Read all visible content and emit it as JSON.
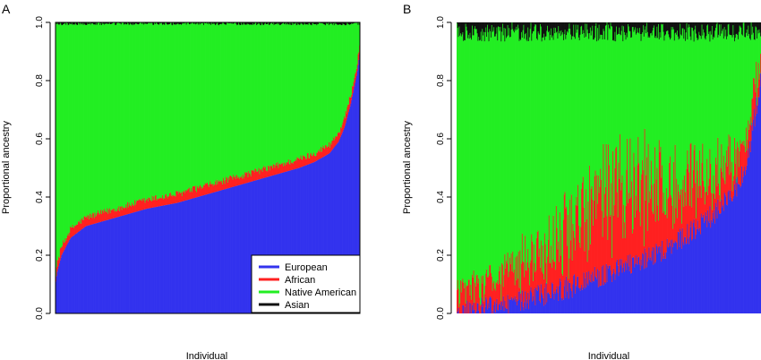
{
  "colors": {
    "European": "#3333ee",
    "African": "#ff2020",
    "Native American": "#22ee22",
    "Asian": "#111111"
  },
  "chart_data": [
    {
      "type": "bar",
      "subtype": "stacked-proportion",
      "panel_label": "A",
      "xlabel": "Individual",
      "ylabel": "Proportional ancestry",
      "ylim": [
        0,
        1
      ],
      "yticks": [
        "0.0",
        "0.2",
        "0.4",
        "0.6",
        "0.8",
        "1.0"
      ],
      "legend": {
        "placement": "bottom-right",
        "entries": [
          "European",
          "African",
          "Native American",
          "Asian"
        ]
      },
      "n_individuals": 420,
      "european_quantiles": {
        "p": [
          0.0,
          0.005,
          0.02,
          0.05,
          0.1,
          0.2,
          0.3,
          0.4,
          0.5,
          0.6,
          0.7,
          0.8,
          0.85,
          0.9,
          0.93,
          0.95,
          0.97,
          0.99,
          1.0
        ],
        "v": [
          0.1,
          0.14,
          0.2,
          0.26,
          0.3,
          0.33,
          0.36,
          0.38,
          0.41,
          0.44,
          0.47,
          0.5,
          0.52,
          0.55,
          0.59,
          0.64,
          0.72,
          0.82,
          0.9
        ]
      },
      "african_mean": 0.03,
      "asian_mean": 0.005
    },
    {
      "type": "bar",
      "subtype": "stacked-proportion",
      "panel_label": "B",
      "xlabel": "Individual",
      "ylabel": "Proportional ancestry",
      "ylim": [
        0,
        1
      ],
      "yticks": [
        "0.0",
        "0.2",
        "0.4",
        "0.6",
        "0.8",
        "1.0"
      ],
      "n_individuals": 420,
      "european_quantiles": {
        "p": [
          0.0,
          0.1,
          0.2,
          0.3,
          0.4,
          0.5,
          0.6,
          0.7,
          0.8,
          0.9,
          0.95,
          1.0
        ],
        "v": [
          0.0,
          0.02,
          0.04,
          0.07,
          0.1,
          0.14,
          0.18,
          0.23,
          0.3,
          0.4,
          0.5,
          0.8
        ]
      },
      "african_mean": 0.12,
      "african_peak": 0.2,
      "asian_mean": 0.03
    }
  ]
}
